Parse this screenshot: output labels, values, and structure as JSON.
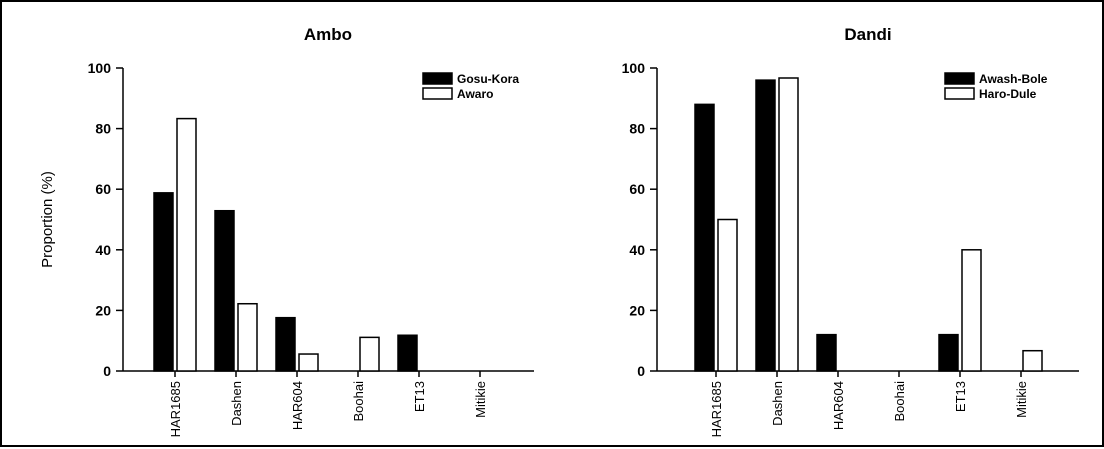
{
  "chart_data": [
    {
      "type": "bar",
      "title": "Ambo",
      "ylabel": "Proportion (%)",
      "xlabel": "",
      "ylim": [
        0,
        100
      ],
      "yticks": [
        "0",
        "20",
        "40",
        "60",
        "80",
        "100"
      ],
      "grid": false,
      "legend_position": "top-right",
      "categories": [
        "HAR1685",
        "Dashen",
        "HAR604",
        "Boohai",
        "ET13",
        "Mitikie"
      ],
      "series": [
        {
          "name": "Gosu-Kora",
          "fill": "#000000",
          "values": [
            58.8,
            52.9,
            17.6,
            0,
            11.8,
            0
          ]
        },
        {
          "name": "Awaro",
          "fill": "#ffffff",
          "values": [
            83.3,
            22.2,
            5.6,
            11.1,
            0,
            0
          ]
        }
      ]
    },
    {
      "type": "bar",
      "title": "Dandi",
      "ylabel": "",
      "xlabel": "",
      "ylim": [
        0,
        100
      ],
      "yticks": [
        "0",
        "20",
        "40",
        "60",
        "80",
        "100"
      ],
      "grid": false,
      "legend_position": "top-right",
      "categories": [
        "HAR1685",
        "Dashen",
        "HAR604",
        "Boohai",
        "ET13",
        "Mitikie"
      ],
      "series": [
        {
          "name": "Awash-Bole",
          "fill": "#000000",
          "values": [
            88,
            96,
            12,
            0,
            12,
            0
          ]
        },
        {
          "name": "Haro-Dule",
          "fill": "#ffffff",
          "values": [
            50,
            96.7,
            0,
            0,
            40,
            6.7
          ]
        }
      ]
    }
  ]
}
